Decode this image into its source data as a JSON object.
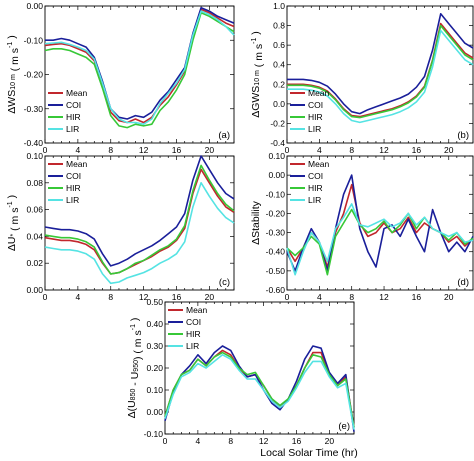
{
  "figure": {
    "xlabel": "Local Solar Time (hr)"
  },
  "chart_data": [
    {
      "type": "line",
      "tag": "(a)",
      "ylabel": {
        "pre": "ΔWS",
        "sub": "10 m",
        "units_open": " ( m s",
        "sup": "-1",
        "units_close": " )"
      },
      "xlim": [
        0,
        23
      ],
      "ylim": [
        -0.4,
        0.0
      ],
      "xticks": [
        0,
        4,
        8,
        12,
        16,
        20
      ],
      "yticks": [
        -0.4,
        -0.3,
        -0.2,
        -0.1,
        0.0
      ],
      "ytick_labels": [
        "-0.40",
        "-0.30",
        "-0.20",
        "-0.10",
        "0.00"
      ],
      "legend_position": "lower-left",
      "x": [
        0,
        1,
        2,
        3,
        4,
        5,
        6,
        7,
        8,
        9,
        10,
        11,
        12,
        13,
        14,
        15,
        16,
        17,
        18,
        19,
        20,
        21,
        22,
        23
      ],
      "series": [
        {
          "name": "Mean",
          "values": [
            -0.115,
            -0.112,
            -0.11,
            -0.115,
            -0.125,
            -0.135,
            -0.16,
            -0.23,
            -0.31,
            -0.335,
            -0.34,
            -0.33,
            -0.34,
            -0.325,
            -0.29,
            -0.265,
            -0.23,
            -0.19,
            -0.09,
            -0.01,
            -0.02,
            -0.035,
            -0.05,
            -0.06
          ]
        },
        {
          "name": "COI",
          "values": [
            -0.1,
            -0.1,
            -0.095,
            -0.1,
            -0.11,
            -0.12,
            -0.15,
            -0.22,
            -0.3,
            -0.325,
            -0.33,
            -0.32,
            -0.325,
            -0.31,
            -0.275,
            -0.25,
            -0.215,
            -0.18,
            -0.08,
            -0.005,
            -0.015,
            -0.03,
            -0.04,
            -0.05
          ]
        },
        {
          "name": "HIR",
          "values": [
            -0.13,
            -0.125,
            -0.125,
            -0.13,
            -0.14,
            -0.15,
            -0.17,
            -0.24,
            -0.32,
            -0.35,
            -0.355,
            -0.345,
            -0.35,
            -0.345,
            -0.305,
            -0.28,
            -0.245,
            -0.2,
            -0.1,
            -0.02,
            -0.03,
            -0.045,
            -0.06,
            -0.075
          ]
        },
        {
          "name": "LIR",
          "values": [
            -0.11,
            -0.108,
            -0.106,
            -0.112,
            -0.12,
            -0.13,
            -0.155,
            -0.225,
            -0.3,
            -0.33,
            -0.34,
            -0.34,
            -0.345,
            -0.33,
            -0.285,
            -0.255,
            -0.225,
            -0.185,
            -0.085,
            -0.015,
            -0.025,
            -0.04,
            -0.06,
            -0.085
          ]
        }
      ]
    },
    {
      "type": "line",
      "tag": "(b)",
      "ylabel": {
        "pre": "ΔGWS",
        "sub": "10 m",
        "units_open": " ( m s",
        "sup": "-1",
        "units_close": " )"
      },
      "xlim": [
        0,
        23
      ],
      "ylim": [
        -0.4,
        1.0
      ],
      "xticks": [
        0,
        4,
        8,
        12,
        16,
        20
      ],
      "yticks": [
        -0.4,
        -0.2,
        0.0,
        0.2,
        0.4,
        0.6,
        0.8,
        1.0
      ],
      "ytick_labels": [
        "-0.4",
        "-0.2",
        "0.0",
        "0.2",
        "0.4",
        "0.6",
        "0.8",
        "1.0"
      ],
      "legend_position": "lower-left",
      "x": [
        0,
        1,
        2,
        3,
        4,
        5,
        6,
        7,
        8,
        9,
        10,
        11,
        12,
        13,
        14,
        15,
        16,
        17,
        18,
        19,
        20,
        21,
        22,
        23
      ],
      "series": [
        {
          "name": "Mean",
          "values": [
            0.2,
            0.2,
            0.2,
            0.19,
            0.17,
            0.13,
            0.05,
            -0.05,
            -0.12,
            -0.13,
            -0.11,
            -0.09,
            -0.07,
            -0.05,
            -0.02,
            0.02,
            0.08,
            0.18,
            0.45,
            0.82,
            0.72,
            0.62,
            0.52,
            0.47
          ]
        },
        {
          "name": "COI",
          "values": [
            0.25,
            0.25,
            0.25,
            0.24,
            0.22,
            0.18,
            0.1,
            0.0,
            -0.08,
            -0.1,
            -0.06,
            -0.03,
            0.0,
            0.03,
            0.06,
            0.1,
            0.17,
            0.28,
            0.55,
            0.92,
            0.82,
            0.72,
            0.62,
            0.57
          ]
        },
        {
          "name": "HIR",
          "values": [
            0.19,
            0.19,
            0.19,
            0.18,
            0.16,
            0.12,
            0.04,
            -0.06,
            -0.13,
            -0.14,
            -0.12,
            -0.1,
            -0.08,
            -0.06,
            -0.03,
            0.01,
            0.07,
            0.17,
            0.44,
            0.8,
            0.7,
            0.6,
            0.5,
            0.45
          ]
        },
        {
          "name": "LIR",
          "values": [
            0.15,
            0.15,
            0.15,
            0.14,
            0.12,
            0.08,
            0.0,
            -0.1,
            -0.17,
            -0.19,
            -0.17,
            -0.15,
            -0.13,
            -0.11,
            -0.08,
            -0.04,
            0.02,
            0.12,
            0.38,
            0.75,
            0.65,
            0.55,
            0.45,
            0.4
          ]
        }
      ]
    },
    {
      "type": "line",
      "tag": "(c)",
      "ylabel": {
        "pre": "ΔU",
        "sub": "*",
        "units_open": " ( m s",
        "sup": "-1",
        "units_close": " )"
      },
      "xlim": [
        0,
        23
      ],
      "ylim": [
        0.0,
        0.1
      ],
      "xticks": [
        0,
        4,
        8,
        12,
        16,
        20
      ],
      "yticks": [
        0.0,
        0.02,
        0.04,
        0.06,
        0.08,
        0.1
      ],
      "ytick_labels": [
        "0.00",
        "0.02",
        "0.04",
        "0.06",
        "0.08",
        "0.10"
      ],
      "legend_position": "upper-left",
      "x": [
        0,
        1,
        2,
        3,
        4,
        5,
        6,
        7,
        8,
        9,
        10,
        11,
        12,
        13,
        14,
        15,
        16,
        17,
        18,
        19,
        20,
        21,
        22,
        23
      ],
      "series": [
        {
          "name": "Mean",
          "values": [
            0.039,
            0.038,
            0.037,
            0.037,
            0.036,
            0.034,
            0.03,
            0.02,
            0.012,
            0.013,
            0.016,
            0.019,
            0.022,
            0.025,
            0.029,
            0.032,
            0.037,
            0.046,
            0.072,
            0.09,
            0.08,
            0.07,
            0.062,
            0.058
          ]
        },
        {
          "name": "COI",
          "values": [
            0.047,
            0.046,
            0.045,
            0.045,
            0.044,
            0.042,
            0.038,
            0.027,
            0.018,
            0.02,
            0.023,
            0.027,
            0.03,
            0.033,
            0.037,
            0.042,
            0.047,
            0.057,
            0.082,
            0.1,
            0.09,
            0.08,
            0.072,
            0.068
          ]
        },
        {
          "name": "HIR",
          "values": [
            0.041,
            0.04,
            0.039,
            0.039,
            0.038,
            0.036,
            0.032,
            0.021,
            0.012,
            0.013,
            0.016,
            0.02,
            0.022,
            0.026,
            0.03,
            0.033,
            0.038,
            0.048,
            0.074,
            0.093,
            0.082,
            0.072,
            0.064,
            0.059
          ]
        },
        {
          "name": "LIR",
          "values": [
            0.032,
            0.031,
            0.03,
            0.03,
            0.029,
            0.027,
            0.023,
            0.012,
            0.005,
            0.006,
            0.009,
            0.011,
            0.013,
            0.016,
            0.02,
            0.023,
            0.027,
            0.036,
            0.062,
            0.08,
            0.07,
            0.061,
            0.054,
            0.05
          ]
        }
      ]
    },
    {
      "type": "line",
      "tag": "(d)",
      "ylabel": {
        "pre": "ΔStability",
        "sub": "",
        "units_open": "",
        "sup": "",
        "units_close": ""
      },
      "xlim": [
        0,
        23
      ],
      "ylim": [
        -0.6,
        0.1
      ],
      "xticks": [
        0,
        4,
        8,
        12,
        16,
        20
      ],
      "yticks": [
        -0.6,
        -0.5,
        -0.4,
        -0.3,
        -0.2,
        -0.1,
        0.0,
        0.1
      ],
      "ytick_labels": [
        "-0.60",
        "-0.50",
        "-0.40",
        "-0.30",
        "-0.20",
        "-0.10",
        "0.00",
        "0.10"
      ],
      "legend_position": "upper-left",
      "x": [
        0,
        1,
        2,
        3,
        4,
        5,
        6,
        7,
        8,
        9,
        10,
        11,
        12,
        13,
        14,
        15,
        16,
        17,
        18,
        19,
        20,
        21,
        22,
        23
      ],
      "series": [
        {
          "name": "Mean",
          "values": [
            -0.38,
            -0.45,
            -0.38,
            -0.3,
            -0.35,
            -0.48,
            -0.3,
            -0.2,
            -0.05,
            -0.25,
            -0.32,
            -0.3,
            -0.25,
            -0.3,
            -0.28,
            -0.22,
            -0.3,
            -0.25,
            -0.28,
            -0.3,
            -0.35,
            -0.32,
            -0.37,
            -0.33
          ]
        },
        {
          "name": "COI",
          "values": [
            -0.4,
            -0.5,
            -0.38,
            -0.28,
            -0.35,
            -0.5,
            -0.28,
            -0.1,
            0.0,
            -0.28,
            -0.4,
            -0.48,
            -0.28,
            -0.26,
            -0.32,
            -0.23,
            -0.32,
            -0.4,
            -0.18,
            -0.3,
            -0.4,
            -0.35,
            -0.4,
            -0.32
          ]
        },
        {
          "name": "HIR",
          "values": [
            -0.38,
            -0.42,
            -0.38,
            -0.32,
            -0.36,
            -0.52,
            -0.32,
            -0.25,
            -0.18,
            -0.26,
            -0.3,
            -0.28,
            -0.24,
            -0.3,
            -0.26,
            -0.2,
            -0.28,
            -0.22,
            -0.28,
            -0.3,
            -0.34,
            -0.3,
            -0.36,
            -0.33
          ]
        },
        {
          "name": "LIR",
          "values": [
            -0.38,
            -0.52,
            -0.4,
            -0.3,
            -0.35,
            -0.45,
            -0.28,
            -0.22,
            -0.15,
            -0.26,
            -0.27,
            -0.25,
            -0.23,
            -0.27,
            -0.25,
            -0.2,
            -0.26,
            -0.22,
            -0.28,
            -0.3,
            -0.32,
            -0.3,
            -0.35,
            -0.34
          ]
        }
      ]
    },
    {
      "type": "line",
      "tag": "(e)",
      "ylabel": {
        "pre": "Δ(U",
        "sub": "850",
        "mid": " - U",
        "sub2": "950",
        "units_open": ") ( m s",
        "sup": "-1",
        "units_close": " )"
      },
      "xlim": [
        0,
        23
      ],
      "ylim": [
        -0.1,
        0.5
      ],
      "xticks": [
        0,
        4,
        8,
        12,
        16,
        20
      ],
      "yticks": [
        -0.1,
        0.0,
        0.1,
        0.2,
        0.3,
        0.4,
        0.5
      ],
      "ytick_labels": [
        "-0.10",
        "0.00",
        "0.10",
        "0.20",
        "0.30",
        "0.40",
        "0.50"
      ],
      "legend_position": "upper-left",
      "x": [
        0,
        1,
        2,
        3,
        4,
        5,
        6,
        7,
        8,
        9,
        10,
        11,
        12,
        13,
        14,
        15,
        16,
        17,
        18,
        19,
        20,
        21,
        22,
        23
      ],
      "series": [
        {
          "name": "Mean",
          "values": [
            -0.02,
            0.1,
            0.17,
            0.19,
            0.24,
            0.21,
            0.25,
            0.28,
            0.26,
            0.2,
            0.16,
            0.17,
            0.12,
            0.06,
            0.02,
            0.06,
            0.12,
            0.2,
            0.27,
            0.27,
            0.17,
            0.12,
            0.16,
            -0.07
          ]
        },
        {
          "name": "COI",
          "values": [
            -0.04,
            0.09,
            0.17,
            0.21,
            0.26,
            0.22,
            0.27,
            0.3,
            0.28,
            0.21,
            0.16,
            0.17,
            0.1,
            0.04,
            0.01,
            0.06,
            0.14,
            0.24,
            0.3,
            0.29,
            0.18,
            0.13,
            0.17,
            -0.09
          ]
        },
        {
          "name": "HIR",
          "values": [
            -0.02,
            0.1,
            0.17,
            0.19,
            0.24,
            0.21,
            0.25,
            0.27,
            0.25,
            0.2,
            0.17,
            0.18,
            0.12,
            0.06,
            0.03,
            0.06,
            0.12,
            0.2,
            0.26,
            0.25,
            0.17,
            0.12,
            0.15,
            -0.07
          ]
        },
        {
          "name": "LIR",
          "values": [
            -0.03,
            0.08,
            0.16,
            0.18,
            0.22,
            0.2,
            0.23,
            0.26,
            0.24,
            0.19,
            0.15,
            0.15,
            0.1,
            0.05,
            0.02,
            0.05,
            0.11,
            0.18,
            0.23,
            0.23,
            0.16,
            0.11,
            0.13,
            -0.08
          ]
        }
      ]
    }
  ],
  "colors": {
    "Mean": "#c1272d",
    "COI": "#1a1f9a",
    "HIR": "#37c837",
    "LIR": "#55e3e3"
  }
}
